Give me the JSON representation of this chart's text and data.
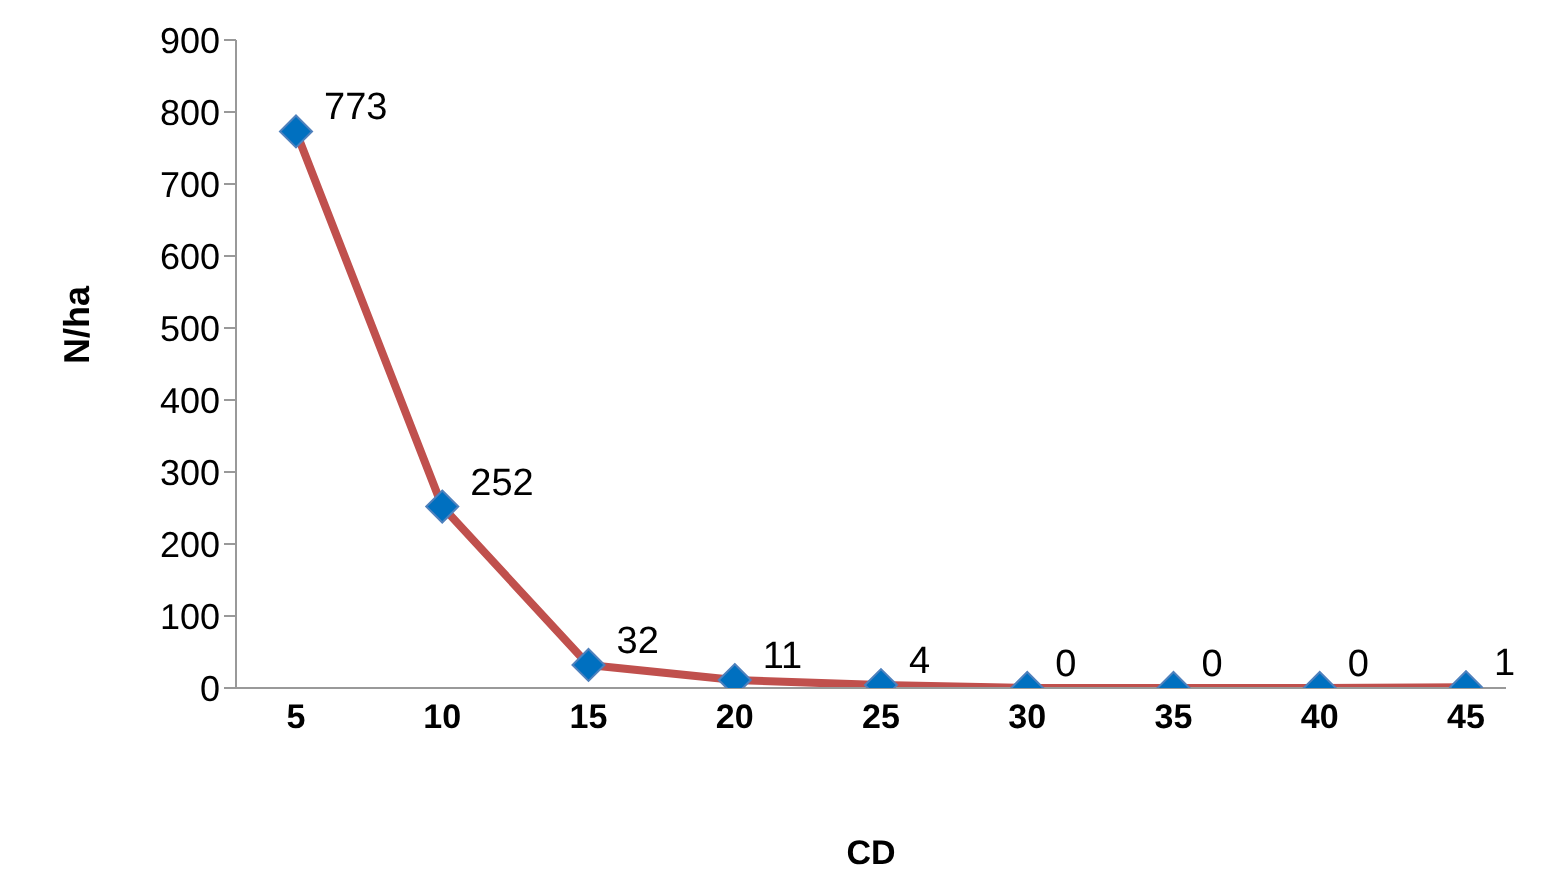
{
  "chart_data": {
    "type": "line",
    "xlabel": "CD",
    "ylabel": "N/ha",
    "categories": [
      "5",
      "10",
      "15",
      "20",
      "25",
      "30",
      "35",
      "40",
      "45"
    ],
    "series": [
      {
        "color": "#c0504d",
        "values": [
          773,
          252,
          32,
          11,
          4,
          0,
          0,
          0,
          1
        ]
      }
    ],
    "ylim": [
      0,
      900
    ],
    "yticks": [
      0,
      100,
      200,
      300,
      400,
      500,
      600,
      700,
      800,
      900
    ],
    "marker": "diamond",
    "line_style": "solid",
    "data_labels": true
  }
}
